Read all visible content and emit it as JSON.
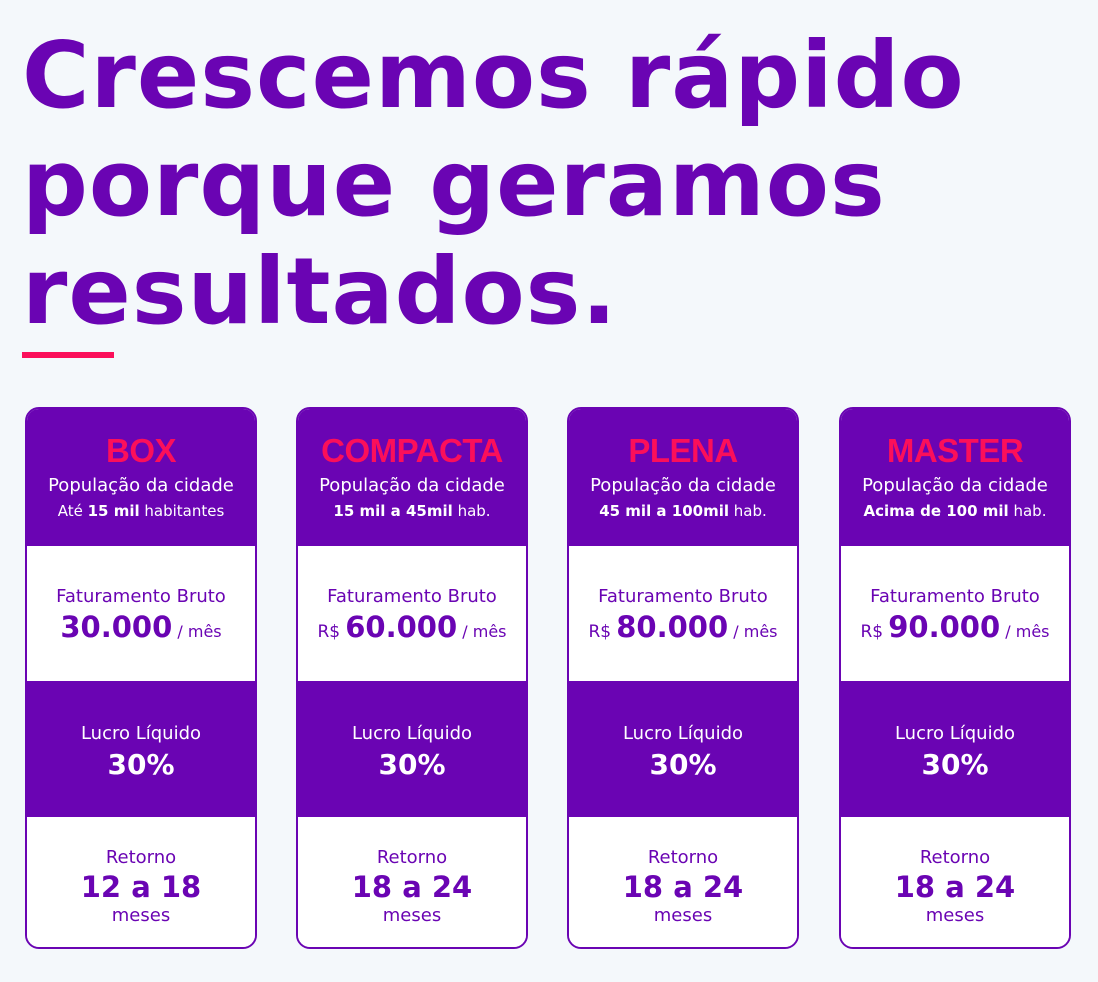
{
  "headline": {
    "line1": "Crescemos rápido",
    "line2": "porque geramos",
    "line3": "resultados."
  },
  "colors": {
    "brand": "#6a04b3",
    "accent": "#fb0f5a",
    "background": "#f4f8fb"
  },
  "cards": [
    {
      "name": "BOX",
      "population_label": "População da cidade",
      "population_prefix": "Até",
      "population_bold": "15 mil",
      "population_suffix": "habitantes",
      "revenue_label": "Faturamento Bruto",
      "revenue_currency": "",
      "revenue_value": "30.000",
      "revenue_unit": "/ mês",
      "profit_label": "Lucro Líquido",
      "profit_value": "30%",
      "return_label": "Retorno",
      "return_value": "12 a 18",
      "return_unit": "meses"
    },
    {
      "name": "COMPACTA",
      "population_label": "População da cidade",
      "population_prefix": "",
      "population_bold": "15 mil a 45mil",
      "population_suffix": "hab.",
      "revenue_label": "Faturamento Bruto",
      "revenue_currency": "R$",
      "revenue_value": "60.000",
      "revenue_unit": "/ mês",
      "profit_label": "Lucro Líquido",
      "profit_value": "30%",
      "return_label": "Retorno",
      "return_value": "18 a 24",
      "return_unit": "meses"
    },
    {
      "name": "PLENA",
      "population_label": "População da cidade",
      "population_prefix": "",
      "population_bold": "45 mil a 100mil",
      "population_suffix": "hab.",
      "revenue_label": "Faturamento Bruto",
      "revenue_currency": "R$",
      "revenue_value": "80.000",
      "revenue_unit": "/ mês",
      "profit_label": "Lucro Líquido",
      "profit_value": "30%",
      "return_label": "Retorno",
      "return_value": "18 a 24",
      "return_unit": "meses"
    },
    {
      "name": "MASTER",
      "population_label": "População da cidade",
      "population_prefix": "",
      "population_bold": "Acima de 100 mil",
      "population_suffix": "hab.",
      "revenue_label": "Faturamento Bruto",
      "revenue_currency": "R$",
      "revenue_value": "90.000",
      "revenue_unit": "/ mês",
      "profit_label": "Lucro Líquido",
      "profit_value": "30%",
      "return_label": "Retorno",
      "return_value": "18 a 24",
      "return_unit": "meses"
    }
  ]
}
